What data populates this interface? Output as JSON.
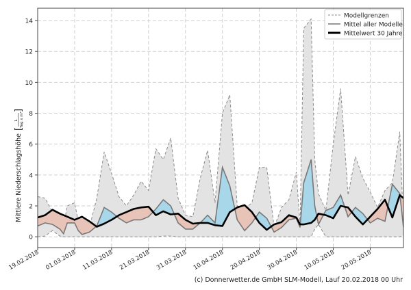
{
  "chart_data": {
    "type": "area",
    "ylabel": "Mittlere Niederschlagshöhe",
    "ylabel_unit_numerator": "L",
    "ylabel_unit_denominator": "Tag x m²",
    "ylim": [
      -0.7,
      14.8
    ],
    "yticks": [
      0,
      2,
      4,
      6,
      8,
      10,
      12,
      14
    ],
    "xlim": [
      "19.02.2018",
      "29.05.2018"
    ],
    "xticks": [
      "19.02.2018",
      "01.03.2018",
      "11.03.2018",
      "21.03.2018",
      "31.03.2018",
      "10.04.2018",
      "20.04.2018",
      "30.04.2018",
      "10.05.2018",
      "20.05.2018"
    ],
    "grid": true,
    "legend_position": "top-right",
    "legend": [
      "Modellgrenzen",
      "Mittel aller Modelle",
      "Mittelwert 30 Jahre"
    ],
    "colors": {
      "envelope": "#e3e3e3",
      "envelope_line": "#8a8a8a",
      "model_mean": "#777777",
      "climate_mean": "#000000",
      "above": "#a9d7ea",
      "below": "#e8c3b8"
    },
    "x": [
      "19.02.2018",
      "21.02.2018",
      "23.02.2018",
      "25.02.2018",
      "26.02.2018",
      "27.02.2018",
      "01.03.2018",
      "02.03.2018",
      "03.03.2018",
      "05.03.2018",
      "07.03.2018",
      "09.03.2018",
      "11.03.2018",
      "13.03.2018",
      "15.03.2018",
      "17.03.2018",
      "19.03.2018",
      "21.03.2018",
      "23.03.2018",
      "25.03.2018",
      "27.03.2018",
      "29.03.2018",
      "31.03.2018",
      "02.04.2018",
      "04.04.2018",
      "06.04.2018",
      "08.04.2018",
      "10.04.2018",
      "12.04.2018",
      "14.04.2018",
      "16.04.2018",
      "18.04.2018",
      "20.04.2018",
      "22.04.2018",
      "24.04.2018",
      "26.04.2018",
      "28.04.2018",
      "30.04.2018",
      "01.05.2018",
      "02.05.2018",
      "04.05.2018",
      "05.05.2018",
      "06.05.2018",
      "08.05.2018",
      "10.05.2018",
      "12.05.2018",
      "14.05.2018",
      "16.05.2018",
      "18.05.2018",
      "20.05.2018",
      "22.05.2018",
      "24.05.2018",
      "26.05.2018",
      "28.05.2018",
      "29.05.2018"
    ],
    "series": [
      {
        "name": "Modellgrenzen (max)",
        "values": [
          2.6,
          2.5,
          1.6,
          1.2,
          0.7,
          2.0,
          2.2,
          1.0,
          0.4,
          0.6,
          2.5,
          5.5,
          4.1,
          2.6,
          2.0,
          2.7,
          3.6,
          3.0,
          5.7,
          5.0,
          6.4,
          2.5,
          1.4,
          1.3,
          3.8,
          5.6,
          2.2,
          8.0,
          9.2,
          2.0,
          1.8,
          2.2,
          4.5,
          4.5,
          0.6,
          1.9,
          2.4,
          4.2,
          0.7,
          13.5,
          14.1,
          5.0,
          2.8,
          1.7,
          6.0,
          9.6,
          2.7,
          5.2,
          3.8,
          2.9,
          1.9,
          3.0,
          3.5,
          6.8,
          0.6
        ]
      },
      {
        "name": "Modellgrenzen (min)",
        "values": [
          0,
          0.05,
          0.4,
          0.05,
          0,
          0,
          0,
          0,
          0,
          0,
          0,
          0,
          0,
          0,
          0,
          0,
          0,
          0,
          0,
          0.05,
          0.05,
          0,
          0,
          0,
          0,
          0,
          0,
          0,
          0,
          0,
          0,
          0,
          0,
          0,
          0,
          0,
          0,
          0,
          0,
          0,
          0,
          0.5,
          0.8,
          0,
          0,
          0,
          0,
          0,
          0,
          0,
          0,
          0,
          0,
          0,
          0.1
        ]
      },
      {
        "name": "Mittel aller Modelle",
        "values": [
          0.7,
          0.9,
          0.8,
          0.5,
          0.2,
          0.9,
          0.9,
          0.4,
          0.15,
          0.3,
          0.7,
          1.9,
          1.6,
          1.2,
          0.9,
          1.1,
          1.1,
          1.3,
          1.8,
          2.4,
          2.0,
          0.9,
          0.5,
          0.5,
          0.9,
          1.4,
          0.9,
          4.5,
          3.3,
          1.1,
          0.4,
          0.9,
          1.6,
          1.2,
          0.3,
          0.6,
          1.1,
          1.2,
          0.6,
          3.5,
          5.0,
          2.0,
          0.8,
          1.7,
          1.9,
          2.7,
          1.3,
          1.9,
          1.5,
          0.9,
          1.2,
          1.0,
          3.4,
          2.8,
          0.6
        ]
      },
      {
        "name": "Mittelwert 30 Jahre",
        "values": [
          1.25,
          1.4,
          1.75,
          1.5,
          1.4,
          1.3,
          1.1,
          1.2,
          1.3,
          1.0,
          0.65,
          0.85,
          1.1,
          1.4,
          1.6,
          1.8,
          1.9,
          1.95,
          1.4,
          1.65,
          1.45,
          1.5,
          1.1,
          0.85,
          0.9,
          0.9,
          0.75,
          0.7,
          1.6,
          1.9,
          2.05,
          1.6,
          0.9,
          0.45,
          0.8,
          0.95,
          1.4,
          1.25,
          0.8,
          0.8,
          0.9,
          1.1,
          1.5,
          1.4,
          1.2,
          2.0,
          1.9,
          1.3,
          0.8,
          1.3,
          1.8,
          2.4,
          1.25,
          2.7,
          2.5
        ]
      }
    ]
  },
  "footer": "(c) Donnerwetter.de GmbH SLM-Modell, Lauf 20.02.2018 00 Uhr"
}
